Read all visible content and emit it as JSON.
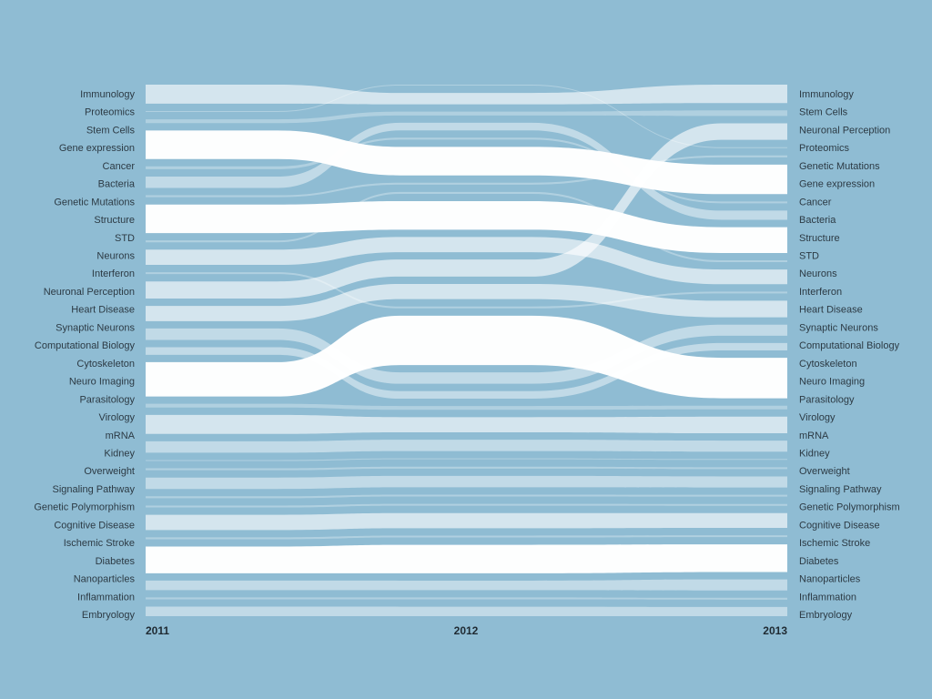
{
  "chart_data": {
    "type": "area",
    "title": "",
    "years": [
      "2011",
      "2012",
      "2013"
    ],
    "colors": {
      "background": "#8fbcd3",
      "flow": "#ffffff"
    },
    "ranks": {
      "2011": [
        "Immunology",
        "Proteomics",
        "Stem Cells",
        "Gene expression",
        "Cancer",
        "Bacteria",
        "Genetic Mutations",
        "Structure",
        "STD",
        "Neurons",
        "Interferon",
        "Neuronal Perception",
        "Heart Disease",
        "Synaptic Neurons",
        "Computational Biology",
        "Cytoskeleton",
        "Neuro Imaging",
        "Parasitology",
        "Virology",
        "mRNA",
        "Kidney",
        "Overweight",
        "Signaling Pathway",
        "Genetic Polymorphism",
        "Cognitive Disease",
        "Ischemic Stroke",
        "Diabetes",
        "Nanoparticles",
        "Inflammation",
        "Embryology"
      ],
      "2013": [
        "Immunology",
        "Stem Cells",
        "Neuronal Perception",
        "Proteomics",
        "Genetic Mutations",
        "Gene expression",
        "Cancer",
        "Bacteria",
        "Structure",
        "STD",
        "Neurons",
        "Interferon",
        "Heart Disease",
        "Synaptic Neurons",
        "Computational Biology",
        "Cytoskeleton",
        "Neuro Imaging",
        "Parasitology",
        "Virology",
        "mRNA",
        "Kidney",
        "Overweight",
        "Signaling Pathway",
        "Genetic Polymorphism",
        "Cognitive Disease",
        "Ischemic Stroke",
        "Diabetes",
        "Nanoparticles",
        "Inflammation",
        "Embryology"
      ]
    },
    "flows": [
      {
        "name": "Immunology",
        "values": [
          1.0,
          0.6,
          1.0
        ],
        "order2012": 1
      },
      {
        "name": "Proteomics",
        "values": [
          0.05,
          0.05,
          0.05
        ],
        "order2012": 0
      },
      {
        "name": "Stem Cells",
        "values": [
          0.2,
          0.2,
          0.3
        ],
        "order2012": 2
      },
      {
        "name": "Gene expression",
        "values": [
          1.5,
          1.5,
          1.6
        ],
        "order2012": 5
      },
      {
        "name": "Cancer",
        "values": [
          0.15,
          0.1,
          0.1
        ],
        "order2012": 4
      },
      {
        "name": "Bacteria",
        "values": [
          0.6,
          0.4,
          0.5
        ],
        "order2012": 3
      },
      {
        "name": "Genetic Mutations",
        "values": [
          0.1,
          0.1,
          0.1
        ],
        "order2012": 6
      },
      {
        "name": "Structure",
        "values": [
          1.5,
          1.5,
          1.4
        ],
        "order2012": 8
      },
      {
        "name": "STD",
        "values": [
          0.1,
          0.1,
          0.1
        ],
        "order2012": 7
      },
      {
        "name": "Neurons",
        "values": [
          0.8,
          0.8,
          0.8
        ],
        "order2012": 9
      },
      {
        "name": "Interferon",
        "values": [
          0.1,
          0.1,
          0.1
        ],
        "order2012": 12
      },
      {
        "name": "Neuronal Perception",
        "values": [
          0.9,
          0.9,
          0.9
        ],
        "order2012": 10
      },
      {
        "name": "Heart Disease",
        "values": [
          0.8,
          0.8,
          0.9
        ],
        "order2012": 11
      },
      {
        "name": "Synaptic Neurons",
        "values": [
          0.6,
          0.6,
          0.6
        ],
        "order2012": 14
      },
      {
        "name": "Computational Biology",
        "values": [
          0.4,
          0.4,
          0.4
        ],
        "order2012": 15
      },
      {
        "name": "Cytoskeleton",
        "values": [
          1.8,
          2.6,
          2.2
        ],
        "order2012": 13
      },
      {
        "name": "Neuro Imaging",
        "values": [
          0.2,
          0.2,
          0.2
        ],
        "order2012": 16
      },
      {
        "name": "Parasitology",
        "values": [
          1.0,
          0.8,
          0.9
        ],
        "order2012": 17
      },
      {
        "name": "Virology",
        "values": [
          0.6,
          0.6,
          0.6
        ],
        "order2012": 18
      },
      {
        "name": "mRNA",
        "values": [
          0.05,
          0.05,
          0.05
        ],
        "order2012": 19
      },
      {
        "name": "Kidney",
        "values": [
          0.1,
          0.1,
          0.1
        ],
        "order2012": 20
      },
      {
        "name": "Overweight",
        "values": [
          0.6,
          0.6,
          0.6
        ],
        "order2012": 21
      },
      {
        "name": "Signaling Pathway",
        "values": [
          0.1,
          0.1,
          0.1
        ],
        "order2012": 22
      },
      {
        "name": "Genetic Polymorphism",
        "values": [
          0.1,
          0.1,
          0.1
        ],
        "order2012": 23
      },
      {
        "name": "Cognitive Disease",
        "values": [
          0.8,
          0.8,
          0.8
        ],
        "order2012": 24
      },
      {
        "name": "Ischemic Stroke",
        "values": [
          0.1,
          0.1,
          0.1
        ],
        "order2012": 25
      },
      {
        "name": "Diabetes",
        "values": [
          1.4,
          1.5,
          1.5
        ],
        "order2012": 26
      },
      {
        "name": "Nanoparticles",
        "values": [
          0.5,
          0.5,
          0.6
        ],
        "order2012": 27
      },
      {
        "name": "Inflammation",
        "values": [
          0.1,
          0.1,
          0.1
        ],
        "order2012": 28
      },
      {
        "name": "Embryology",
        "values": [
          0.5,
          0.5,
          0.5
        ],
        "order2012": 29
      }
    ]
  }
}
